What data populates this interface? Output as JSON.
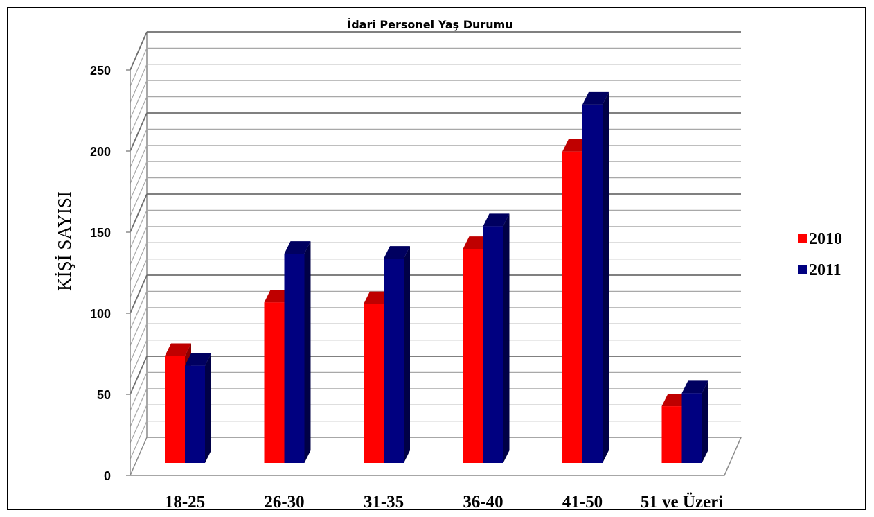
{
  "chart_data": {
    "type": "bar",
    "title": "İdari Personel Yaş Durumu",
    "ylabel": "KİŞİ SAYISI",
    "xlabel": "",
    "categories": [
      "18-25",
      "26-30",
      "31-35",
      "36-40",
      "41-50",
      "51 ve Üzeri"
    ],
    "series": [
      {
        "name": "2010",
        "color": "#ff0000",
        "values": [
          66,
          99,
          98,
          132,
          192,
          35
        ]
      },
      {
        "name": "2011",
        "color": "#000080",
        "values": [
          60,
          129,
          126,
          146,
          221,
          43
        ]
      }
    ],
    "ylim": [
      0,
      250
    ],
    "y_ticks": [
      "0",
      "50",
      "100",
      "150",
      "200",
      "250"
    ],
    "style": "3d-clustered-column",
    "grid": true,
    "legend": "right"
  }
}
